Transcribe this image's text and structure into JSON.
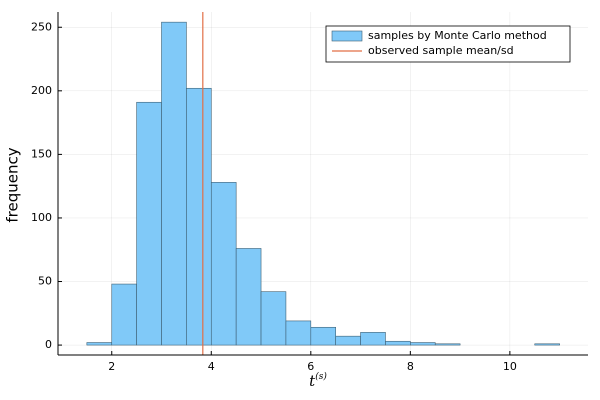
{
  "chart_data": {
    "type": "histogram",
    "name": "samples by Monte Carlo method",
    "color": "#80c9f8",
    "edge_color": "#3d5f73",
    "bins": [
      1.5,
      2,
      2.5,
      3,
      3.5,
      4,
      4.5,
      5,
      5.5,
      6,
      6.5,
      7,
      7.5,
      8,
      8.5,
      9,
      9.5,
      10,
      10.5,
      11
    ],
    "values": [
      2,
      48,
      191,
      254,
      202,
      128,
      76,
      42,
      19,
      14,
      7,
      10,
      3,
      2,
      1,
      0,
      0,
      0,
      1
    ],
    "vline": {
      "name": "observed sample mean/sd",
      "color": "#e26f46",
      "value": 3.83
    },
    "xlabel": {
      "base": "t",
      "superscript": "(s)"
    },
    "ylabel": "frequency",
    "xlim": [
      0.92,
      11.57
    ],
    "ylim": [
      -7.8,
      262
    ],
    "xticks": [
      2,
      4,
      6,
      8,
      10
    ],
    "yticks": [
      0,
      50,
      100,
      150,
      200,
      250
    ],
    "grid": true,
    "legend": "top-right"
  }
}
